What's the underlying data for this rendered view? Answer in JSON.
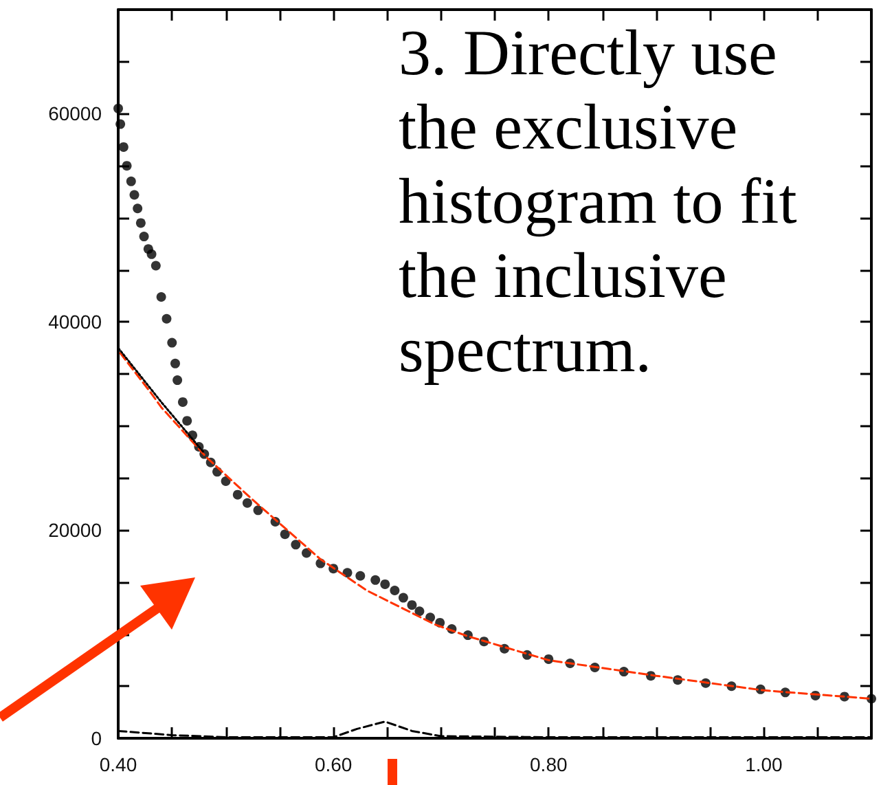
{
  "chart_data": {
    "type": "scatter",
    "annotations": [
      "3. Directly use the exclusive histogram to fit the inclusive spectrum."
    ],
    "xlim": [
      0.4,
      1.1
    ],
    "ylim": [
      0,
      70000
    ],
    "xticks": [
      {
        "value": 0.4,
        "label": "0.40"
      },
      {
        "value": 0.45,
        "label": null
      },
      {
        "value": 0.5,
        "label": null
      },
      {
        "value": 0.55,
        "label": null
      },
      {
        "value": 0.6,
        "label": "0.60"
      },
      {
        "value": 0.65,
        "label": null
      },
      {
        "value": 0.7,
        "label": null
      },
      {
        "value": 0.75,
        "label": null
      },
      {
        "value": 0.8,
        "label": "0.80"
      },
      {
        "value": 0.85,
        "label": null
      },
      {
        "value": 0.9,
        "label": null
      },
      {
        "value": 0.95,
        "label": null
      },
      {
        "value": 1.0,
        "label": "1.00"
      },
      {
        "value": 1.05,
        "label": null
      },
      {
        "value": 1.1,
        "label": null
      }
    ],
    "yticks": [
      0,
      {
        "value": 5000,
        "label": null
      },
      {
        "value": 10000,
        "label": null
      },
      {
        "value": 15000,
        "label": null
      },
      20000,
      {
        "value": 25000,
        "label": null
      },
      {
        "value": 30000,
        "label": null
      },
      {
        "value": 35000,
        "label": null
      },
      40000,
      {
        "value": 45000,
        "label": null
      },
      {
        "value": 50000,
        "label": null
      },
      {
        "value": 55000,
        "label": null
      },
      60000,
      {
        "value": 65000,
        "label": null
      }
    ],
    "grid": false,
    "series": [
      {
        "marker": "circle",
        "color": "#000000",
        "x": [
          0.4,
          0.402,
          0.405,
          0.408,
          0.412,
          0.415,
          0.418,
          0.421,
          0.424,
          0.428,
          0.431,
          0.435,
          0.44,
          0.445,
          0.45,
          0.453,
          0.455,
          0.46,
          0.464,
          0.469,
          0.475,
          0.48,
          0.486,
          0.492,
          0.5,
          0.511,
          0.52,
          0.53,
          0.546,
          0.555,
          0.565,
          0.575,
          0.588,
          0.6,
          0.613,
          0.625,
          0.639,
          0.648,
          0.657,
          0.665,
          0.673,
          0.68,
          0.69,
          0.699,
          0.71,
          0.725,
          0.74,
          0.759,
          0.78,
          0.8,
          0.82,
          0.843,
          0.87,
          0.895,
          0.92,
          0.946,
          0.97,
          0.997,
          1.02,
          1.048,
          1.075,
          1.1
        ],
        "values": [
          60500,
          59000,
          56800,
          55000,
          53500,
          52200,
          50900,
          49500,
          48200,
          47000,
          46500,
          45400,
          42400,
          40300,
          38000,
          36000,
          34400,
          32300,
          30500,
          29100,
          28000,
          27300,
          26500,
          25600,
          24700,
          23400,
          22600,
          21900,
          20800,
          19600,
          18600,
          17800,
          16800,
          16300,
          15900,
          15600,
          15200,
          14800,
          14200,
          13500,
          12800,
          12200,
          11600,
          11100,
          10500,
          9900,
          9300,
          8600,
          8000,
          7600,
          7200,
          6800,
          6400,
          6000,
          5600,
          5300,
          5000,
          4700,
          4400,
          4100,
          4000,
          3800
        ]
      },
      {
        "type": "line",
        "line_style": "dashed",
        "marker": "none",
        "color": "#ff3300",
        "x": [
          0.402,
          0.431,
          0.44,
          0.482,
          0.524,
          0.588,
          0.631,
          0.695,
          0.725,
          0.8,
          0.9,
          1.0,
          1.1
        ],
        "values": [
          37000,
          33100,
          31800,
          27000,
          23000,
          17200,
          14200,
          10900,
          9800,
          7500,
          6000,
          4600,
          3800
        ]
      },
      {
        "type": "line",
        "line_style": "dotted",
        "marker": "none",
        "color": "#000000",
        "x": [
          0.4,
          0.44,
          0.48
        ],
        "values": [
          37500,
          32300,
          27400
        ]
      },
      {
        "type": "line",
        "line_style": "dashed",
        "marker": "none",
        "color": "#000000",
        "x": [
          0.4,
          0.45,
          0.5,
          0.6,
          0.622,
          0.648,
          0.673,
          0.7,
          0.8,
          0.9,
          1.0,
          1.1
        ],
        "values": [
          700,
          300,
          100,
          100,
          900,
          1600,
          700,
          200,
          100,
          100,
          100,
          100
        ]
      }
    ]
  }
}
